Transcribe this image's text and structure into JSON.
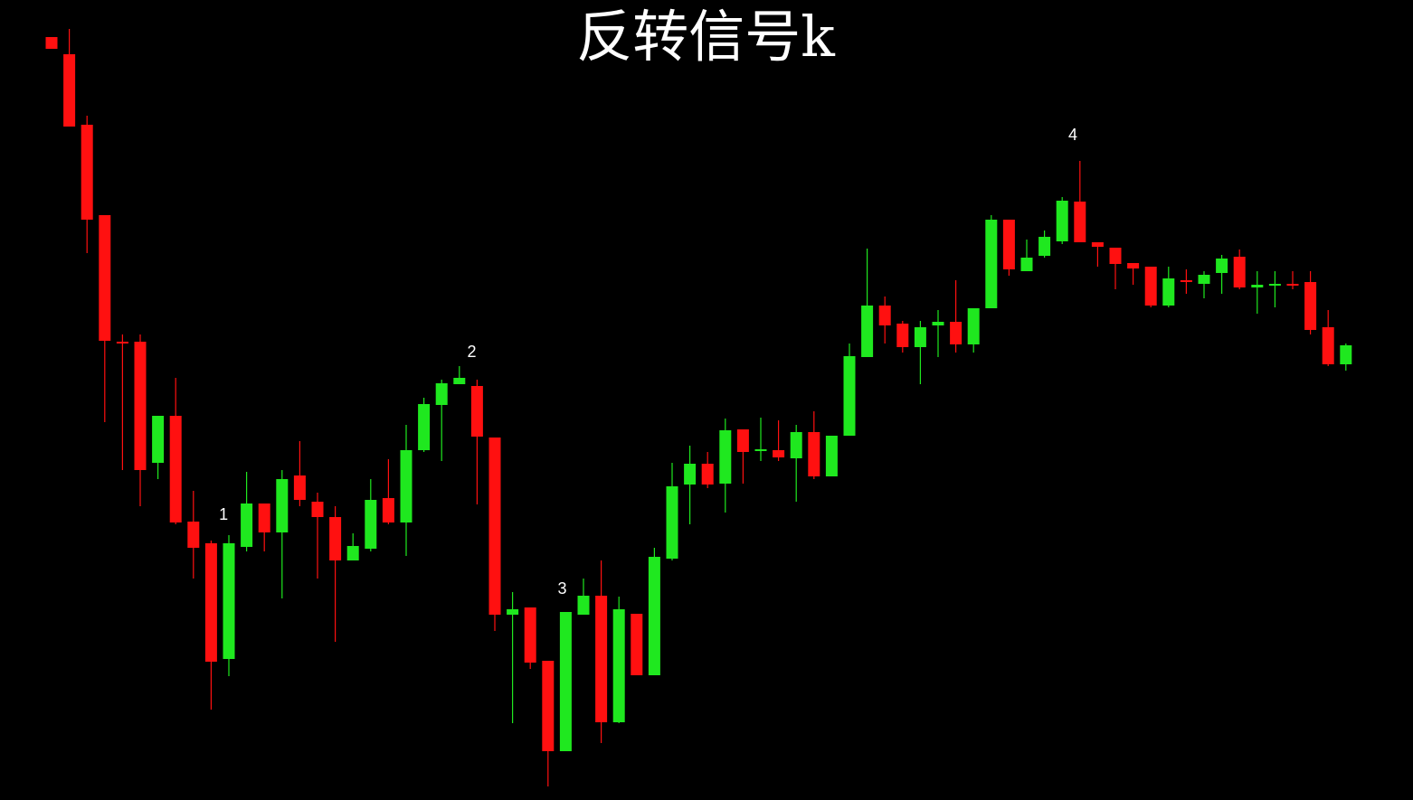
{
  "chart_data": {
    "type": "candlestick",
    "title": "反转信号k",
    "open": [
      844,
      825,
      747,
      647,
      507,
      507,
      373,
      425,
      308,
      284,
      156,
      280,
      328,
      296,
      359,
      330,
      313,
      265,
      278,
      334,
      307,
      387,
      437,
      460,
      458,
      401,
      205,
      213,
      154,
      54,
      205,
      226,
      86,
      206,
      138,
      267,
      349,
      372,
      350,
      410,
      386,
      387,
      378,
      407,
      358,
      403,
      490,
      547,
      527,
      501,
      525,
      529,
      504,
      544,
      642,
      585,
      602,
      618,
      662,
      617,
      611,
      594,
      590,
      547,
      575,
      571,
      583,
      601,
      567,
      569,
      571,
      573,
      523,
      482
    ],
    "close": [
      831,
      745,
      642,
      508,
      505,
      365,
      425,
      307,
      279,
      153,
      284,
      328,
      296,
      355,
      332,
      313,
      265,
      281,
      332,
      307,
      387,
      438,
      461,
      467,
      402,
      205,
      211,
      152,
      54,
      208,
      226,
      86,
      211,
      138,
      269,
      347,
      372,
      349,
      409,
      385,
      388,
      379,
      407,
      358,
      403,
      491,
      547,
      525,
      501,
      523,
      529,
      504,
      544,
      642,
      587,
      600,
      623,
      663,
      617,
      612,
      593,
      588,
      547,
      577,
      573,
      581,
      599,
      567,
      570,
      571,
      569,
      520,
      482,
      503
    ],
    "high": [
      844,
      853,
      757,
      647,
      515,
      515,
      425,
      467,
      342,
      287,
      293,
      363,
      328,
      365,
      397,
      340,
      325,
      295,
      355,
      377,
      415,
      445,
      465,
      480,
      465,
      401,
      230,
      213,
      154,
      208,
      245,
      265,
      225,
      206,
      279,
      373,
      392,
      385,
      422,
      410,
      423,
      420,
      415,
      430,
      403,
      505,
      610,
      557,
      530,
      530,
      542,
      575,
      544,
      647,
      642,
      620,
      630,
      667,
      707,
      617,
      611,
      594,
      590,
      590,
      587,
      585,
      603,
      609,
      585,
      585,
      585,
      585,
      542,
      505
    ],
    "low": [
      831,
      745,
      605,
      418,
      365,
      325,
      355,
      305,
      245,
      100,
      137,
      275,
      275,
      223,
      325,
      245,
      175,
      265,
      275,
      305,
      270,
      385,
      375,
      460,
      327,
      187,
      85,
      145,
      15,
      54,
      205,
      63,
      85,
      138,
      138,
      265,
      305,
      345,
      318,
      350,
      375,
      375,
      330,
      355,
      358,
      403,
      490,
      505,
      495,
      460,
      490,
      495,
      495,
      544,
      580,
      585,
      600,
      615,
      617,
      590,
      565,
      570,
      545,
      545,
      560,
      555,
      560,
      565,
      538,
      545,
      565,
      515,
      480,
      475
    ],
    "up_color": "#1fe81f",
    "down_color": "#ff1010",
    "ylim": [
      0,
      885
    ],
    "annotations": [
      "1",
      "2",
      "3",
      "4"
    ]
  }
}
